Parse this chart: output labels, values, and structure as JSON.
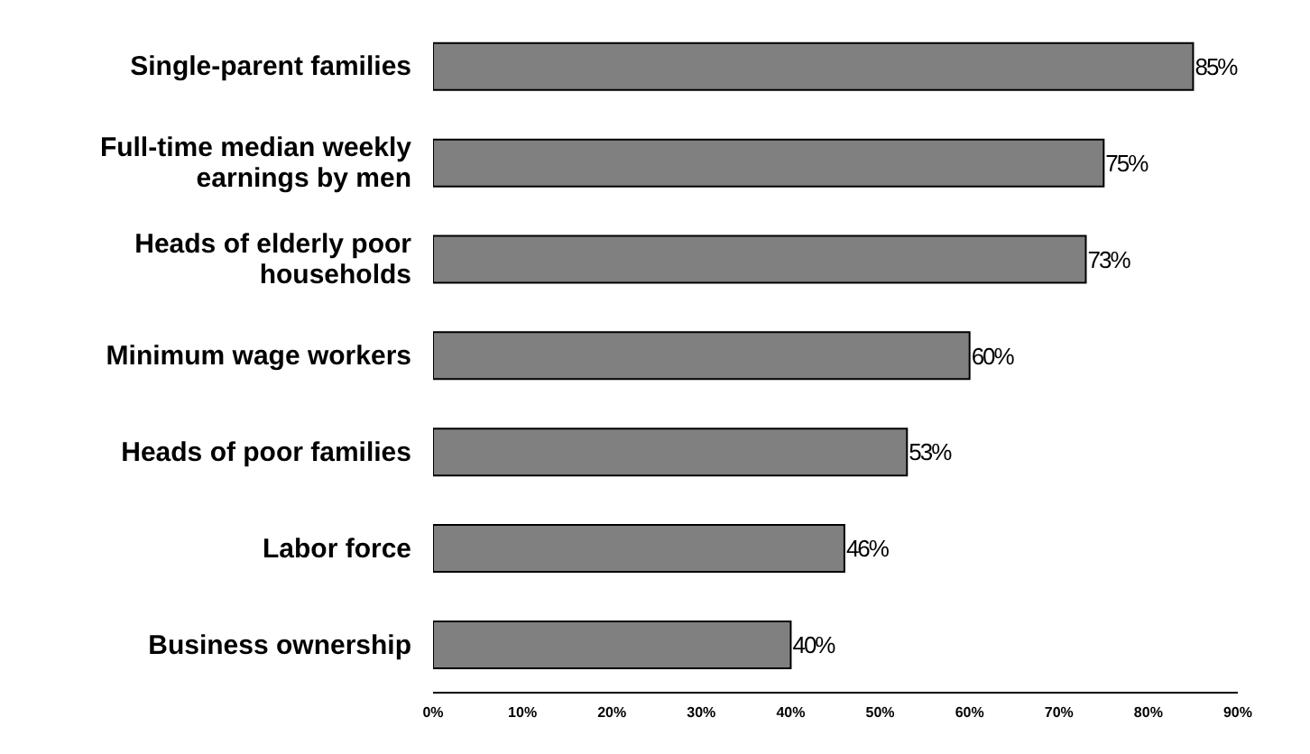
{
  "chart_data": {
    "type": "bar",
    "orientation": "horizontal",
    "categories": [
      "Single-parent families",
      "Full-time median weekly earnings by men",
      "Heads of elderly poor households",
      "Minimum wage workers",
      "Heads of poor families",
      "Labor force",
      "Business ownership"
    ],
    "values": [
      85,
      75,
      73,
      60,
      53,
      46,
      40
    ],
    "value_labels": [
      "85%",
      "75%",
      "73%",
      "60%",
      "53%",
      "46%",
      "40%"
    ],
    "color": "#808080",
    "xlim": [
      0,
      90
    ],
    "xticks": [
      {
        "value": 0,
        "label": "0%"
      },
      {
        "value": 10,
        "label": "10%"
      },
      {
        "value": 20,
        "label": "20%"
      },
      {
        "value": 30,
        "label": "30%"
      },
      {
        "value": 40,
        "label": "40%"
      },
      {
        "value": 50,
        "label": "50%"
      },
      {
        "value": 60,
        "label": "60%"
      },
      {
        "value": 70,
        "label": "70%"
      },
      {
        "value": 80,
        "label": "80%"
      },
      {
        "value": 90,
        "label": "90%"
      }
    ],
    "grid": false,
    "legend": false
  }
}
